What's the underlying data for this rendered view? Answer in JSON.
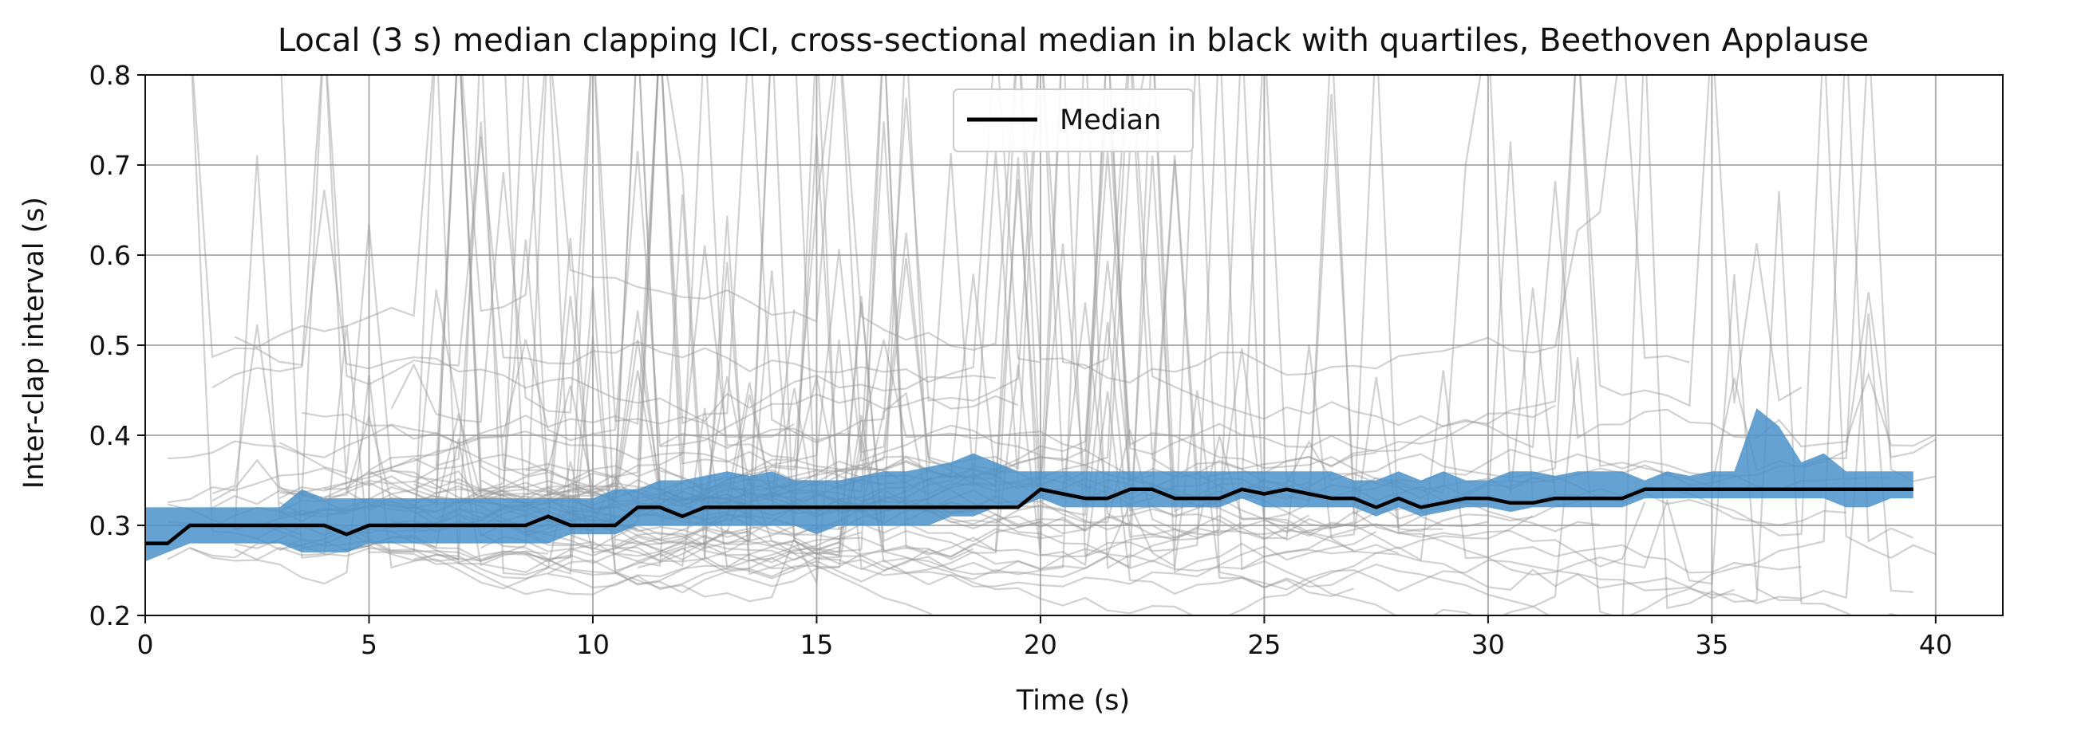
{
  "chart_data": {
    "type": "line",
    "title": "Local (3 s) median clapping ICI, cross-sectional median in black with quartiles, Beethoven Applause",
    "xlabel": "Time (s)",
    "ylabel": "Inter-clap interval (s)",
    "xlim": [
      0,
      41.5
    ],
    "ylim": [
      0.2,
      0.8
    ],
    "xticks": [
      0,
      5,
      10,
      15,
      20,
      25,
      30,
      35,
      40
    ],
    "yticks": [
      0.2,
      0.3,
      0.4,
      0.5,
      0.6,
      0.7,
      0.8
    ],
    "xtick_labels": [
      "0",
      "5",
      "10",
      "15",
      "20",
      "25",
      "30",
      "35",
      "40"
    ],
    "ytick_labels": [
      "0.2",
      "0.3",
      "0.4",
      "0.5",
      "0.6",
      "0.7",
      "0.8"
    ],
    "grid": true,
    "legend_position": "top-center",
    "legend": [
      "Median"
    ],
    "colors": {
      "median": "#000000",
      "quartile_band": "#4a90c9",
      "individual": "#9a9a9a",
      "grid": "#b0b0b0"
    },
    "median": {
      "name": "Median",
      "x": [
        0,
        0.5,
        1,
        1.5,
        2,
        2.5,
        3,
        3.5,
        4,
        4.5,
        5,
        5.5,
        6,
        6.5,
        7,
        7.5,
        8,
        8.5,
        9,
        9.5,
        10,
        10.5,
        11,
        11.5,
        12,
        12.5,
        13,
        13.5,
        14,
        14.5,
        15,
        15.5,
        16,
        16.5,
        17,
        17.5,
        18,
        18.5,
        19,
        19.5,
        20,
        20.5,
        21,
        21.5,
        22,
        22.5,
        23,
        23.5,
        24,
        24.5,
        25,
        25.5,
        26,
        26.5,
        27,
        27.5,
        28,
        28.5,
        29,
        29.5,
        30,
        30.5,
        31,
        31.5,
        32,
        32.5,
        33,
        33.5,
        34,
        34.5,
        35,
        35.5,
        36,
        36.5,
        37,
        37.5,
        38,
        38.5,
        39,
        39.5
      ],
      "y": [
        0.28,
        0.28,
        0.3,
        0.3,
        0.3,
        0.3,
        0.3,
        0.3,
        0.3,
        0.29,
        0.3,
        0.3,
        0.3,
        0.3,
        0.3,
        0.3,
        0.3,
        0.3,
        0.31,
        0.3,
        0.3,
        0.3,
        0.32,
        0.32,
        0.31,
        0.32,
        0.32,
        0.32,
        0.32,
        0.32,
        0.32,
        0.32,
        0.32,
        0.32,
        0.32,
        0.32,
        0.32,
        0.32,
        0.32,
        0.32,
        0.34,
        0.335,
        0.33,
        0.33,
        0.34,
        0.34,
        0.33,
        0.33,
        0.33,
        0.34,
        0.335,
        0.34,
        0.335,
        0.33,
        0.33,
        0.32,
        0.33,
        0.32,
        0.325,
        0.33,
        0.33,
        0.325,
        0.325,
        0.33,
        0.33,
        0.33,
        0.33,
        0.34,
        0.34,
        0.34,
        0.34,
        0.34,
        0.34,
        0.34,
        0.34,
        0.34,
        0.34,
        0.34,
        0.34,
        0.34
      ]
    },
    "quartiles": {
      "q1": [
        0.26,
        0.27,
        0.28,
        0.28,
        0.28,
        0.28,
        0.28,
        0.27,
        0.27,
        0.27,
        0.28,
        0.28,
        0.28,
        0.28,
        0.28,
        0.28,
        0.28,
        0.28,
        0.28,
        0.29,
        0.29,
        0.29,
        0.3,
        0.3,
        0.3,
        0.3,
        0.3,
        0.3,
        0.3,
        0.3,
        0.29,
        0.3,
        0.3,
        0.3,
        0.3,
        0.3,
        0.31,
        0.31,
        0.32,
        0.32,
        0.33,
        0.32,
        0.32,
        0.32,
        0.32,
        0.32,
        0.32,
        0.32,
        0.32,
        0.33,
        0.32,
        0.32,
        0.32,
        0.32,
        0.32,
        0.31,
        0.32,
        0.31,
        0.315,
        0.32,
        0.32,
        0.315,
        0.32,
        0.32,
        0.32,
        0.32,
        0.32,
        0.33,
        0.33,
        0.33,
        0.33,
        0.33,
        0.33,
        0.33,
        0.33,
        0.33,
        0.32,
        0.32,
        0.33,
        0.33
      ],
      "q3": [
        0.32,
        0.32,
        0.32,
        0.32,
        0.32,
        0.32,
        0.32,
        0.34,
        0.33,
        0.33,
        0.33,
        0.33,
        0.33,
        0.33,
        0.33,
        0.33,
        0.33,
        0.33,
        0.33,
        0.33,
        0.33,
        0.34,
        0.34,
        0.35,
        0.35,
        0.355,
        0.36,
        0.355,
        0.36,
        0.35,
        0.35,
        0.35,
        0.355,
        0.36,
        0.36,
        0.365,
        0.37,
        0.38,
        0.37,
        0.36,
        0.36,
        0.36,
        0.36,
        0.36,
        0.36,
        0.36,
        0.36,
        0.36,
        0.36,
        0.36,
        0.36,
        0.36,
        0.36,
        0.36,
        0.35,
        0.35,
        0.36,
        0.35,
        0.36,
        0.35,
        0.35,
        0.36,
        0.36,
        0.355,
        0.36,
        0.36,
        0.36,
        0.35,
        0.36,
        0.355,
        0.36,
        0.36,
        0.43,
        0.41,
        0.37,
        0.38,
        0.36,
        0.36,
        0.36,
        0.36
      ]
    }
  }
}
